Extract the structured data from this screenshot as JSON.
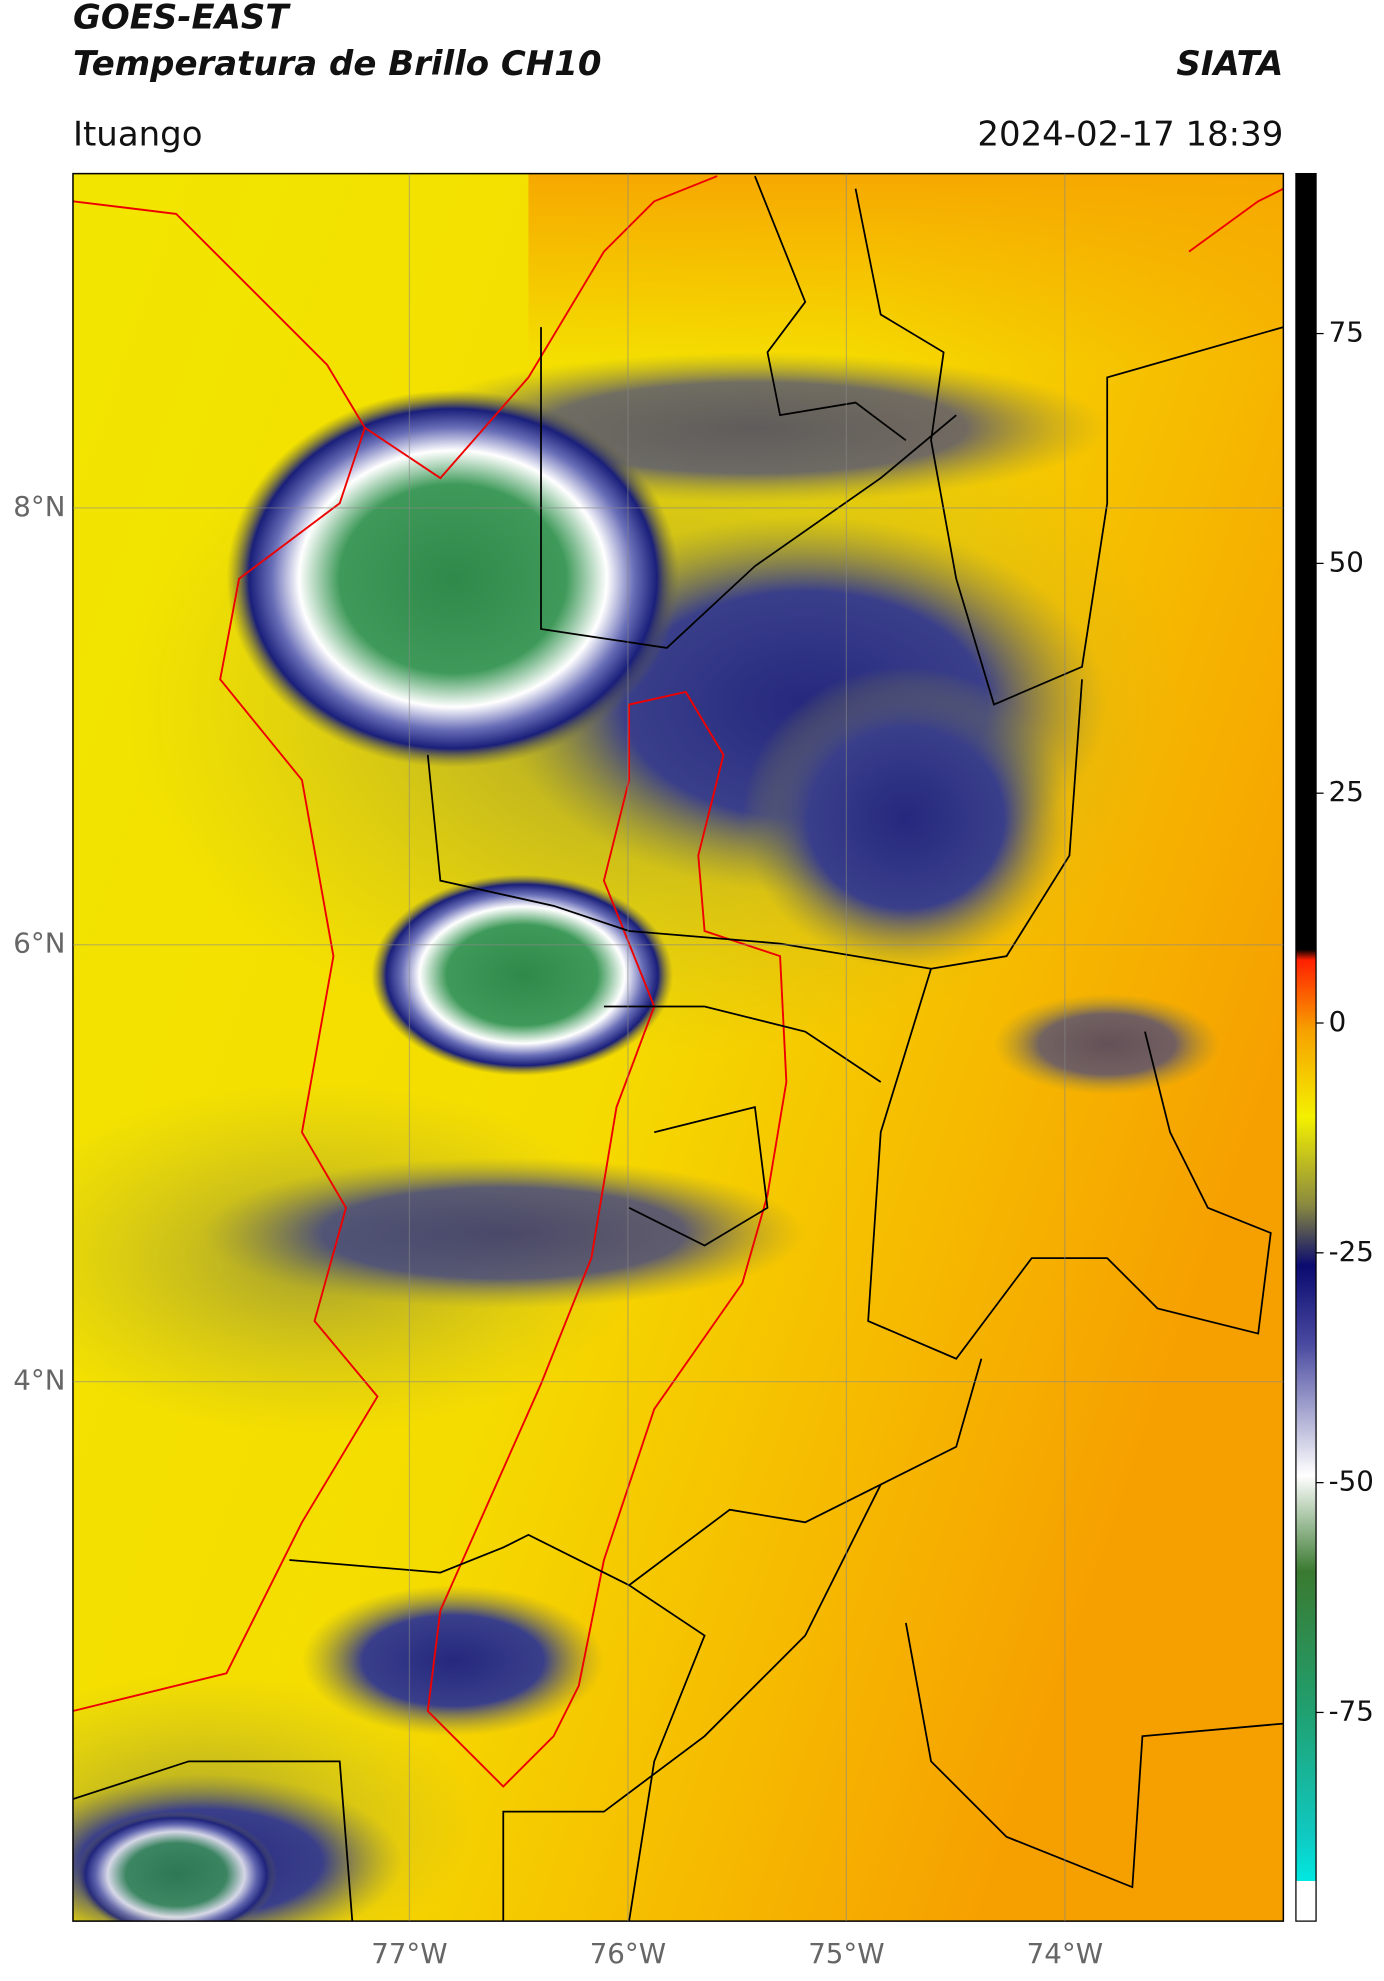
{
  "header": {
    "title": "GOES-EAST",
    "subtitle": "Temperatura de Brillo CH10",
    "credit": "SIATA",
    "location": "Ituango",
    "timestamp": "2024-02-17 18:39"
  },
  "map": {
    "xlim": [
      -78.54,
      -73.0
    ],
    "ylim": [
      1.53,
      9.53
    ],
    "xticks": [
      {
        "value": -77,
        "label": "77°W"
      },
      {
        "value": -76,
        "label": "76°W"
      },
      {
        "value": -75,
        "label": "75°W"
      },
      {
        "value": -74,
        "label": "74°W"
      }
    ],
    "yticks": [
      {
        "value": 8,
        "label": "8°N"
      },
      {
        "value": 6,
        "label": "6°N"
      },
      {
        "value": 4,
        "label": "4°N"
      }
    ],
    "grid": true
  },
  "colorbar": {
    "lim": [
      -97.7,
      92.4
    ],
    "ticks": [
      75,
      50,
      25,
      0,
      -25,
      -50,
      -75
    ]
  }
}
